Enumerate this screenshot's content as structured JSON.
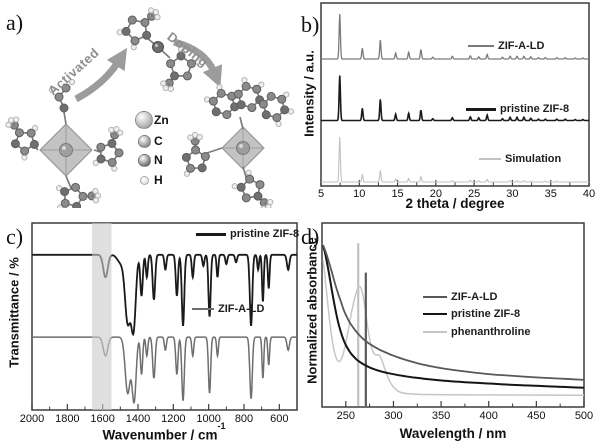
{
  "figure": {
    "background": "#ffffff"
  },
  "panels": {
    "a": {
      "label": "a)",
      "arrows": [
        {
          "name": "activated-arrow",
          "label": "Activated"
        },
        {
          "name": "doping-arrow",
          "label": "Doping"
        }
      ],
      "arrow_color": "#9c9c9c",
      "atom_legend": [
        {
          "element": "Zn",
          "color": "#a8a8a8",
          "size": "large"
        },
        {
          "element": "C",
          "color": "#8b8b8b",
          "size": "medium"
        },
        {
          "element": "N",
          "color": "#6f6f6f",
          "size": "medium"
        },
        {
          "element": "H",
          "color": "#e2e2e2",
          "size": "small"
        }
      ],
      "molecules": [
        "pristine-zif8-node",
        "2-methylimidazole-zn-linker",
        "phenanthroline-doped-zif8-node"
      ]
    },
    "b": {
      "label": "b)"
    },
    "c": {
      "label": "c)"
    },
    "d": {
      "label": "d)"
    }
  },
  "chart_data": [
    {
      "panel": "b",
      "type": "line",
      "chart_kind": "xrd-patterns",
      "xlabel": "2 theta / degree",
      "ylabel": "Intensity / a.u.",
      "xlim": [
        5,
        40
      ],
      "xticks": [
        5,
        10,
        15,
        20,
        25,
        30,
        35,
        40
      ],
      "minor_tick_step": 2.5,
      "peak_sigma_deg": 0.12,
      "series": [
        {
          "name": "ZIF-A-LD",
          "color": "#7a7a7a",
          "stack_level": 2,
          "line_width": 1.3,
          "peaks_2theta_relint": [
            [
              7.45,
              1.0
            ],
            [
              10.4,
              0.24
            ],
            [
              12.75,
              0.42
            ],
            [
              14.75,
              0.13
            ],
            [
              16.45,
              0.15
            ],
            [
              18.05,
              0.21
            ],
            [
              19.6,
              0.04
            ],
            [
              22.15,
              0.06
            ],
            [
              24.5,
              0.07
            ],
            [
              25.6,
              0.05
            ],
            [
              26.7,
              0.1
            ],
            [
              28.7,
              0.04
            ],
            [
              29.7,
              0.06
            ],
            [
              30.6,
              0.06
            ],
            [
              31.5,
              0.06
            ],
            [
              32.4,
              0.05
            ],
            [
              33.4,
              0.03
            ],
            [
              34.3,
              0.03
            ],
            [
              35.8,
              0.03
            ],
            [
              36.9,
              0.03
            ],
            [
              38.2,
              0.02
            ],
            [
              39.2,
              0.02
            ]
          ]
        },
        {
          "name": "pristine ZIF-8",
          "color": "#1a1a1a",
          "stack_level": 1,
          "line_width": 1.6,
          "peaks_2theta_relint": [
            [
              7.45,
              1.0
            ],
            [
              10.4,
              0.27
            ],
            [
              12.75,
              0.47
            ],
            [
              14.75,
              0.14
            ],
            [
              16.45,
              0.16
            ],
            [
              18.05,
              0.23
            ],
            [
              19.6,
              0.04
            ],
            [
              22.15,
              0.06
            ],
            [
              24.5,
              0.08
            ],
            [
              25.6,
              0.06
            ],
            [
              26.7,
              0.12
            ],
            [
              28.7,
              0.04
            ],
            [
              29.7,
              0.07
            ],
            [
              30.6,
              0.07
            ],
            [
              31.5,
              0.07
            ],
            [
              32.4,
              0.05
            ],
            [
              33.4,
              0.03
            ],
            [
              34.3,
              0.03
            ],
            [
              35.8,
              0.03
            ],
            [
              36.9,
              0.03
            ],
            [
              38.2,
              0.02
            ],
            [
              39.2,
              0.02
            ]
          ]
        },
        {
          "name": "Simulation",
          "color": "#c2c2c2",
          "stack_level": 0,
          "line_width": 1.1,
          "peaks_2theta_relint": [
            [
              7.45,
              1.0
            ],
            [
              10.4,
              0.16
            ],
            [
              12.75,
              0.26
            ],
            [
              14.75,
              0.07
            ],
            [
              16.45,
              0.08
            ],
            [
              18.05,
              0.12
            ],
            [
              22.15,
              0.03
            ],
            [
              24.5,
              0.04
            ],
            [
              25.6,
              0.03
            ],
            [
              26.7,
              0.06
            ],
            [
              29.7,
              0.03
            ],
            [
              30.6,
              0.03
            ],
            [
              31.5,
              0.03
            ],
            [
              32.4,
              0.02
            ],
            [
              34.3,
              0.02
            ],
            [
              35.8,
              0.02
            ]
          ]
        }
      ]
    },
    {
      "panel": "c",
      "type": "line",
      "chart_kind": "ftir-spectra",
      "xlabel": "Wavenumber / cm",
      "xlabel_superscript": "-1",
      "ylabel": "Transmittance / %",
      "xlim": [
        2000,
        500
      ],
      "x_reversed": true,
      "xticks": [
        2000,
        1800,
        1600,
        1400,
        1200,
        1000,
        800,
        600
      ],
      "minor_tick_step": 100,
      "highlight_band": {
        "from_cm": 1660,
        "to_cm": 1550,
        "color": "#cbcbcb",
        "opacity": 0.62
      },
      "series": [
        {
          "name": "pristine ZIF-8",
          "color": "#1a1a1a",
          "line_width": 1.8,
          "baseline_level": 0.83,
          "dips_cm_depth_width": [
            [
              1584,
              0.12,
              18
            ],
            [
              1500,
              0.04,
              25
            ],
            [
              1458,
              0.36,
              22
            ],
            [
              1425,
              0.38,
              18
            ],
            [
              1380,
              0.22,
              10
            ],
            [
              1350,
              0.12,
              8
            ],
            [
              1310,
              0.24,
              10
            ],
            [
              1245,
              0.08,
              8
            ],
            [
              1180,
              0.22,
              9
            ],
            [
              1145,
              0.38,
              10
            ],
            [
              1090,
              0.12,
              8
            ],
            [
              1030,
              0.06,
              8
            ],
            [
              995,
              0.33,
              9
            ],
            [
              950,
              0.12,
              7
            ],
            [
              900,
              0.05,
              8
            ],
            [
              845,
              0.04,
              8
            ],
            [
              760,
              0.38,
              10
            ],
            [
              720,
              0.08,
              7
            ],
            [
              693,
              0.25,
              7
            ],
            [
              660,
              0.18,
              7
            ],
            [
              550,
              0.08,
              10
            ]
          ]
        },
        {
          "name": "ZIF-A-LD",
          "color": "#6e6e6e",
          "line_width": 1.5,
          "baseline_level": 0.39,
          "dips_cm_depth_width": [
            [
              1584,
              0.1,
              18
            ],
            [
              1458,
              0.3,
              20
            ],
            [
              1422,
              0.34,
              16
            ],
            [
              1380,
              0.2,
              9
            ],
            [
              1350,
              0.1,
              8
            ],
            [
              1310,
              0.22,
              10
            ],
            [
              1245,
              0.07,
              8
            ],
            [
              1180,
              0.2,
              9
            ],
            [
              1145,
              0.34,
              10
            ],
            [
              1090,
              0.1,
              8
            ],
            [
              995,
              0.3,
              9
            ],
            [
              950,
              0.1,
              7
            ],
            [
              760,
              0.33,
              10
            ],
            [
              693,
              0.22,
              7
            ],
            [
              660,
              0.15,
              7
            ],
            [
              550,
              0.07,
              10
            ]
          ]
        }
      ]
    },
    {
      "panel": "d",
      "type": "line",
      "chart_kind": "uv-vis-spectra",
      "xlabel": "Wavelength / nm",
      "ylabel": "Normalized absorbance",
      "xlim": [
        225,
        500
      ],
      "xticks": [
        250,
        300,
        350,
        400,
        450,
        500
      ],
      "minor_tick_step": 25,
      "vlines": [
        {
          "x_nm": 263,
          "color": "#c2c2c2",
          "height_frac": 0.89,
          "width": 2.2
        },
        {
          "x_nm": 271,
          "color": "#5a5a5a",
          "height_frac": 0.73,
          "width": 2.2
        }
      ],
      "series": [
        {
          "name": "ZIF-A-LD",
          "color": "#585858",
          "line_width": 1.8,
          "points_nm_abs": [
            [
              226,
              0.88
            ],
            [
              228,
              0.855
            ],
            [
              230,
              0.825
            ],
            [
              233,
              0.775
            ],
            [
              236,
              0.72
            ],
            [
              239,
              0.665
            ],
            [
              242,
              0.615
            ],
            [
              245,
              0.57
            ],
            [
              248,
              0.525
            ],
            [
              251,
              0.49
            ],
            [
              254,
              0.46
            ],
            [
              258,
              0.43
            ],
            [
              262,
              0.403
            ],
            [
              266,
              0.381
            ],
            [
              270,
              0.362
            ],
            [
              275,
              0.343
            ],
            [
              280,
              0.327
            ],
            [
              286,
              0.31
            ],
            [
              292,
              0.296
            ],
            [
              300,
              0.279
            ],
            [
              308,
              0.264
            ],
            [
              316,
              0.251
            ],
            [
              325,
              0.238
            ],
            [
              335,
              0.226
            ],
            [
              345,
              0.216
            ],
            [
              355,
              0.207
            ],
            [
              370,
              0.196
            ],
            [
              385,
              0.187
            ],
            [
              400,
              0.179
            ],
            [
              420,
              0.171
            ],
            [
              440,
              0.164
            ],
            [
              460,
              0.158
            ],
            [
              480,
              0.153
            ],
            [
              500,
              0.148
            ]
          ]
        },
        {
          "name": "pristine ZIF-8",
          "color": "#151515",
          "line_width": 2.0,
          "points_nm_abs": [
            [
              226,
              0.88
            ],
            [
              228,
              0.84
            ],
            [
              230,
              0.79
            ],
            [
              232,
              0.735
            ],
            [
              234,
              0.675
            ],
            [
              236,
              0.615
            ],
            [
              238,
              0.558
            ],
            [
              240,
              0.506
            ],
            [
              242,
              0.46
            ],
            [
              244,
              0.421
            ],
            [
              246,
              0.388
            ],
            [
              248,
              0.36
            ],
            [
              250,
              0.337
            ],
            [
              253,
              0.309
            ],
            [
              256,
              0.287
            ],
            [
              259,
              0.27
            ],
            [
              262,
              0.255
            ],
            [
              266,
              0.24
            ],
            [
              270,
              0.228
            ],
            [
              275,
              0.215
            ],
            [
              280,
              0.205
            ],
            [
              286,
              0.195
            ],
            [
              292,
              0.187
            ],
            [
              300,
              0.178
            ],
            [
              310,
              0.169
            ],
            [
              320,
              0.161
            ],
            [
              332,
              0.154
            ],
            [
              345,
              0.147
            ],
            [
              360,
              0.14
            ],
            [
              375,
              0.135
            ],
            [
              395,
              0.129
            ],
            [
              415,
              0.123
            ],
            [
              435,
              0.118
            ],
            [
              455,
              0.114
            ],
            [
              478,
              0.109
            ],
            [
              500,
              0.105
            ]
          ]
        },
        {
          "name": "phenanthroline",
          "color": "#c6c6c6",
          "line_width": 1.5,
          "points_nm_abs": [
            [
              226,
              0.8
            ],
            [
              227.5,
              0.74
            ],
            [
              229,
              0.665
            ],
            [
              231,
              0.565
            ],
            [
              233,
              0.47
            ],
            [
              235,
              0.39
            ],
            [
              237,
              0.325
            ],
            [
              239,
              0.281
            ],
            [
              241,
              0.255
            ],
            [
              243,
              0.247
            ],
            [
              245,
              0.258
            ],
            [
              247,
              0.285
            ],
            [
              249,
              0.325
            ],
            [
              251,
              0.375
            ],
            [
              253,
              0.43
            ],
            [
              255,
              0.487
            ],
            [
              257,
              0.54
            ],
            [
              259,
              0.585
            ],
            [
              261,
              0.622
            ],
            [
              263,
              0.648
            ],
            [
              264.5,
              0.655
            ],
            [
              266,
              0.645
            ],
            [
              268,
              0.607
            ],
            [
              270,
              0.545
            ],
            [
              272,
              0.47
            ],
            [
              274,
              0.4
            ],
            [
              276,
              0.345
            ],
            [
              278,
              0.308
            ],
            [
              280,
              0.287
            ],
            [
              282,
              0.282
            ],
            [
              284,
              0.284
            ],
            [
              286,
              0.275
            ],
            [
              288,
              0.252
            ],
            [
              290,
              0.222
            ],
            [
              293,
              0.178
            ],
            [
              296,
              0.141
            ],
            [
              300,
              0.108
            ],
            [
              304,
              0.089
            ],
            [
              308,
              0.079
            ],
            [
              314,
              0.073
            ],
            [
              322,
              0.07
            ],
            [
              335,
              0.068
            ],
            [
              355,
              0.067
            ],
            [
              390,
              0.066
            ],
            [
              430,
              0.065
            ],
            [
              500,
              0.064
            ]
          ]
        }
      ]
    }
  ]
}
